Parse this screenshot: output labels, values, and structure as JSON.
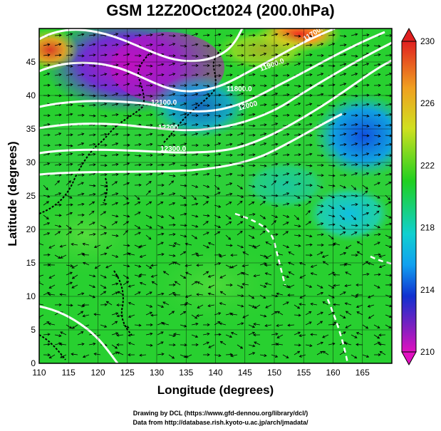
{
  "title": "GSM 12Z20Oct2024 (200.0hPa)",
  "chart_data": {
    "type": "heatmap",
    "title": "GSM 12Z20Oct2024 (200.0hPa)",
    "xlabel": "Longitude (degrees)",
    "ylabel": "Latitude  (degrees)",
    "xlim": [
      110,
      170
    ],
    "ylim": [
      0,
      50
    ],
    "x_ticks": [
      "110",
      "115",
      "120",
      "125",
      "130",
      "135",
      "140",
      "145",
      "150",
      "155",
      "160",
      "165"
    ],
    "y_ticks": [
      "0",
      "5",
      "10",
      "15",
      "20",
      "25",
      "30",
      "35",
      "40",
      "45"
    ],
    "colorbar": {
      "range": [
        210,
        230
      ],
      "tick_labels": [
        "230",
        "226",
        "222",
        "218",
        "214",
        "210"
      ]
    },
    "contour_labels": [
      "11700.0",
      "11800.0",
      "11900.0",
      "12000",
      "12100.0",
      "12200",
      "12300.0"
    ],
    "grid": true
  },
  "colors": {
    "low": "#d010c0",
    "mid_low": "#1040d0",
    "mid": "#10c0e0",
    "mid_high": "#20d030",
    "high_mid": "#d0e020",
    "high": "#e02020"
  },
  "credits": {
    "line1": "Drawing by DCL (https://www.gfd-dennou.org/library/dcl/)",
    "line2": "Data from http://database.rish.kyoto-u.ac.jp/arch/jmadata/"
  }
}
